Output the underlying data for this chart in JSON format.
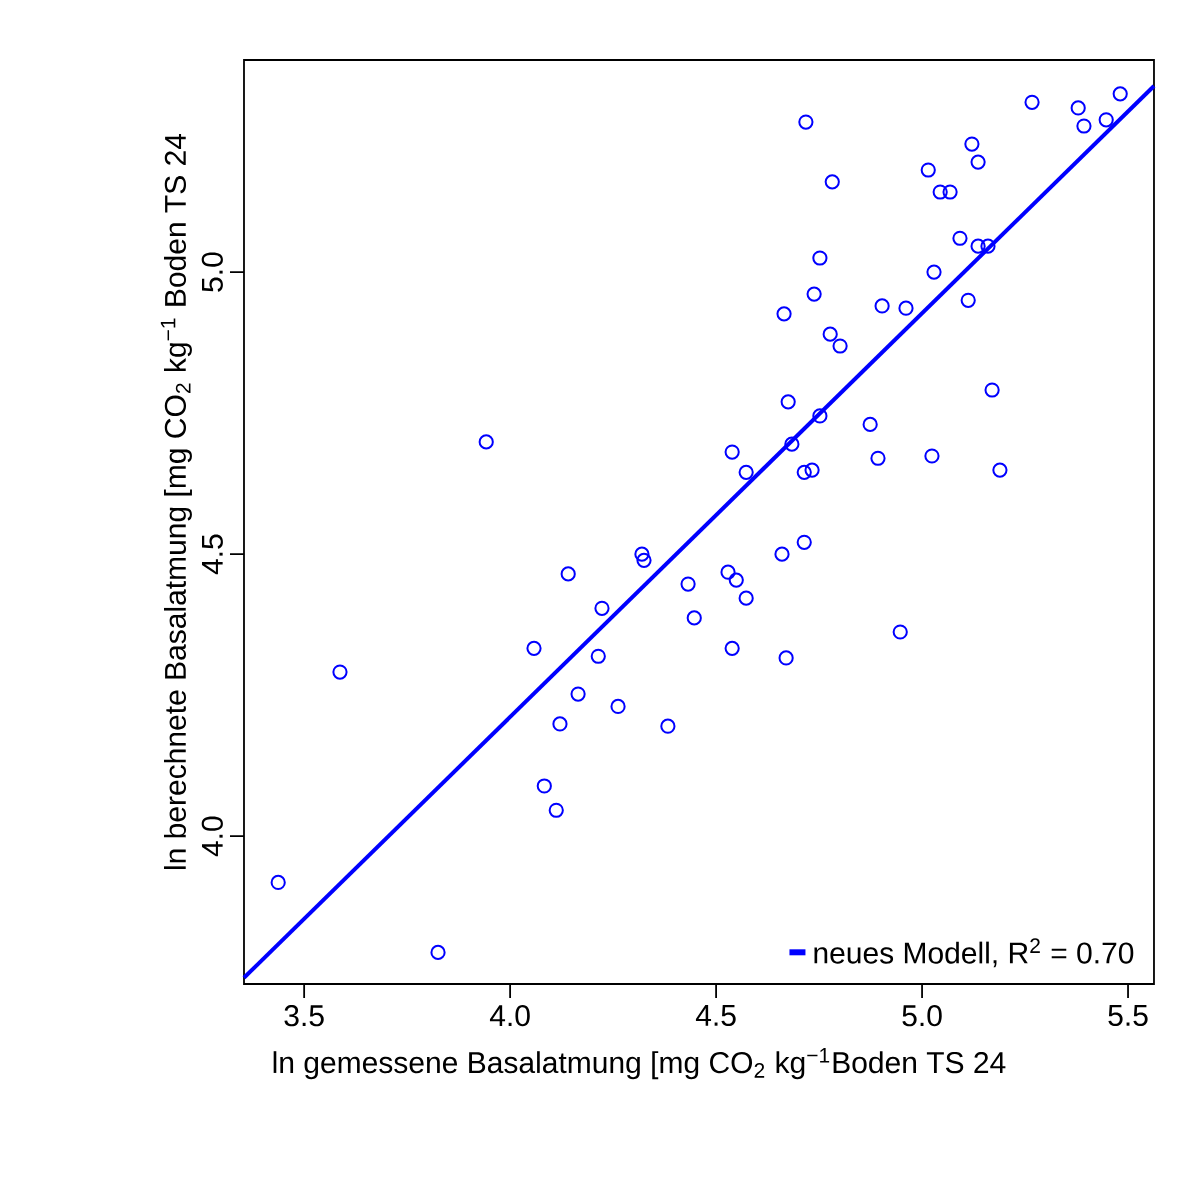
{
  "chart_data": {
    "type": "scatter",
    "xlabel": "ln gemessene Basalatmung [mg CO$_{2}$ kg$^{−1}$Boden TS 24",
    "ylabel": "ln berechnete Basalatmung [mg CO$_{2}$ kg$^{−1}$ Boden TS 24",
    "xlim": [
      3.354,
      5.563
    ],
    "ylim": [
      3.738,
      5.376
    ],
    "xticks": [
      {
        "value": 3.5,
        "label": "3.5"
      },
      {
        "value": 4,
        "label": "4.0"
      },
      {
        "value": 4.5,
        "label": "4.5"
      },
      {
        "value": 5,
        "label": "5.0"
      },
      {
        "value": 5.5,
        "label": "5.5"
      }
    ],
    "yticks": [
      {
        "value": 4,
        "label": "4.0"
      },
      {
        "value": 4.5,
        "label": "4.5"
      },
      {
        "value": 5,
        "label": "5.0"
      }
    ],
    "grid": false,
    "legend": "bottom right",
    "series": [
      {
        "color": "#0000ff",
        "marker": "circle",
        "x": [
          3.942,
          3.587,
          3.437,
          3.825,
          4.058,
          4.083,
          4.112,
          4.121,
          4.141,
          4.165,
          4.214,
          4.223,
          4.262,
          4.32,
          4.325,
          4.383,
          4.432,
          4.447,
          4.529,
          4.549,
          4.573,
          4.539,
          4.66,
          4.714,
          4.67,
          4.947,
          4.718,
          4.782,
          5.267,
          5.379,
          5.393,
          5.447,
          5.481,
          5.121,
          5.136,
          5.015,
          5.044,
          5.068,
          5.092,
          5.136,
          5.16,
          5.029,
          4.752,
          4.738,
          4.665,
          4.903,
          4.961,
          5.112,
          4.777,
          4.801,
          4.675,
          5.17,
          4.752,
          4.684,
          4.874,
          4.539,
          4.573,
          4.714,
          4.733,
          4.893,
          5.024,
          5.189
        ],
        "values": [
          4.699,
          4.291,
          3.918,
          3.794,
          4.333,
          4.089,
          4.046,
          4.199,
          4.465,
          4.252,
          4.319,
          4.404,
          4.23,
          4.5,
          4.489,
          4.195,
          4.447,
          4.387,
          4.468,
          4.454,
          4.422,
          4.333,
          4.5,
          4.521,
          4.316,
          4.362,
          5.266,
          5.16,
          5.301,
          5.291,
          5.259,
          5.27,
          5.316,
          5.227,
          5.195,
          5.181,
          5.142,
          5.142,
          5.06,
          5.046,
          5.046,
          5.0,
          5.025,
          4.961,
          4.926,
          4.94,
          4.936,
          4.95,
          4.89,
          4.869,
          4.77,
          4.791,
          4.745,
          4.695,
          4.73,
          4.681,
          4.645,
          4.645,
          4.649,
          4.67,
          4.674,
          4.649
        ]
      },
      {
        "type": "line",
        "name": "neues Modell, R$^{2}$ = 0.70",
        "color": "#0000ff",
        "line_style": "solid",
        "x": [
          3.354,
          5.563
        ],
        "values": [
          3.749,
          5.33
        ]
      }
    ]
  }
}
